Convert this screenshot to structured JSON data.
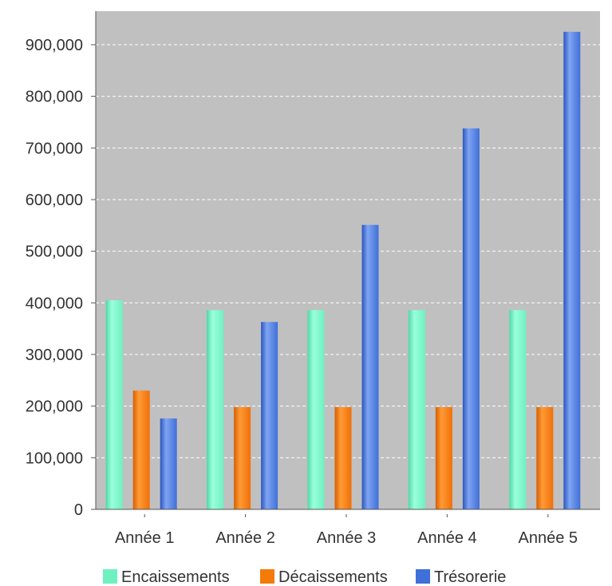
{
  "chart_data": {
    "type": "bar",
    "categories": [
      "Année 1",
      "Année 2",
      "Année 3",
      "Année 4",
      "Année 5"
    ],
    "series": [
      {
        "name": "Encaissements",
        "values": [
          405000,
          386000,
          386000,
          386000,
          386000
        ],
        "color": "#6ff0c0"
      },
      {
        "name": "Décaissements",
        "values": [
          230000,
          198000,
          198000,
          198000,
          198000
        ],
        "color": "#f47a0a"
      },
      {
        "name": "Trésorerie",
        "values": [
          176000,
          363000,
          551000,
          738000,
          925000
        ],
        "color": "#3f6fd8"
      }
    ],
    "y_ticks": [
      "0",
      "100,000",
      "200,000",
      "300,000",
      "400,000",
      "500,000",
      "600,000",
      "700,000",
      "800,000",
      "900,000"
    ],
    "y_tick_values": [
      0,
      100000,
      200000,
      300000,
      400000,
      500000,
      600000,
      700000,
      800000,
      900000
    ],
    "ylim": [
      0,
      965000
    ],
    "grid": true,
    "plot_background": "#c0c0c0",
    "legend_position": "bottom"
  }
}
